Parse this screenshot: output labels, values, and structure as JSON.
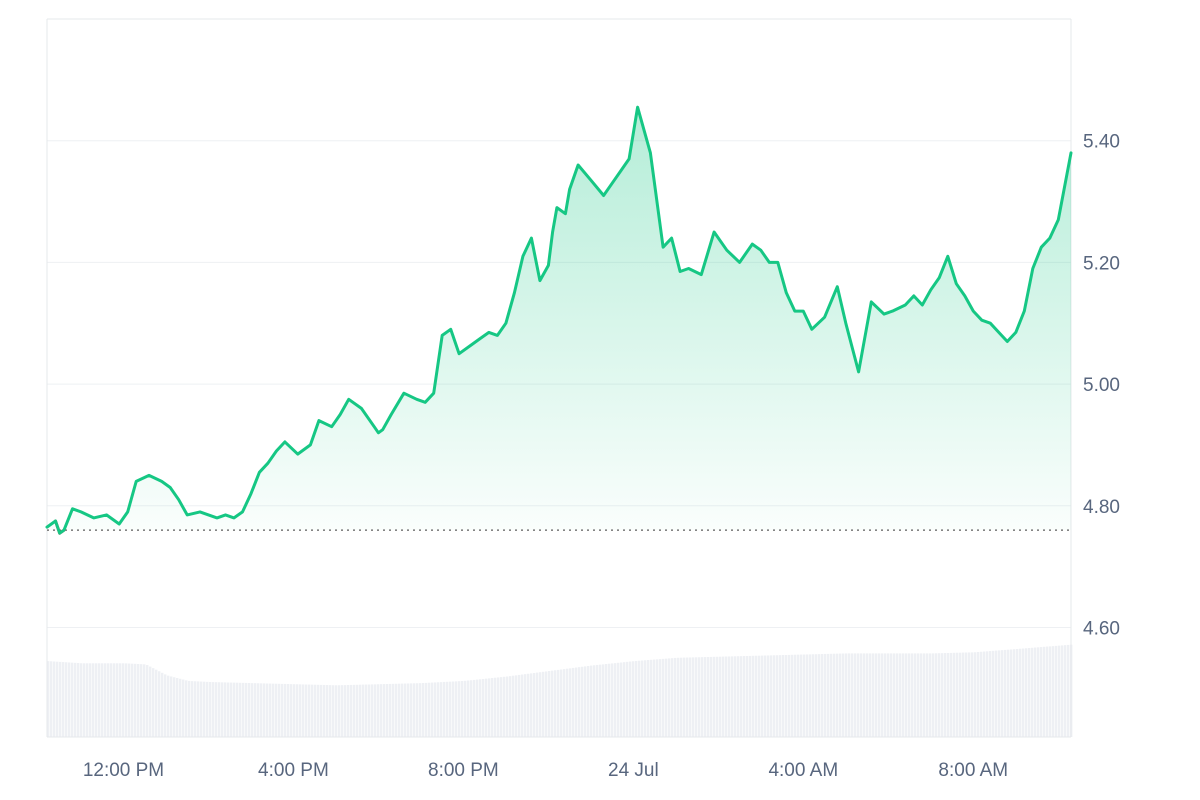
{
  "chart_data": {
    "type": "area",
    "title": "",
    "xlabel": "",
    "ylabel": "",
    "ylim": [
      4.42,
      5.6
    ],
    "y_ticks": [
      "5.40",
      "5.20",
      "5.00",
      "4.80",
      "4.60"
    ],
    "y_tick_values": [
      5.4,
      5.2,
      5.0,
      4.8,
      4.6
    ],
    "x_range_hours": [
      10.2,
      34.3
    ],
    "x_ticks": [
      {
        "label": "12:00 PM",
        "hour": 12
      },
      {
        "label": "4:00 PM",
        "hour": 16
      },
      {
        "label": "8:00 PM",
        "hour": 20
      },
      {
        "label": "24 Jul",
        "hour": 24
      },
      {
        "label": "4:00 AM",
        "hour": 28
      },
      {
        "label": "8:00 AM",
        "hour": 32
      }
    ],
    "open_price": 4.76,
    "grid": true,
    "legend": "none",
    "colors": {
      "up": "#16c784",
      "down": "#ea3943",
      "volume": "#eef0f4"
    },
    "price_series": {
      "name": "",
      "hours": [
        10.2,
        10.4,
        10.5,
        10.6,
        10.8,
        11.0,
        11.3,
        11.6,
        11.9,
        12.1,
        12.3,
        12.6,
        12.9,
        13.1,
        13.3,
        13.5,
        13.8,
        14.0,
        14.2,
        14.4,
        14.6,
        14.8,
        15.0,
        15.2,
        15.4,
        15.6,
        15.8,
        16.1,
        16.4,
        16.6,
        16.9,
        17.1,
        17.3,
        17.6,
        17.9,
        18.0,
        18.1,
        18.3,
        18.6,
        18.9,
        19.1,
        19.3,
        19.5,
        19.7,
        19.9,
        20.2,
        20.4,
        20.6,
        20.8,
        21.0,
        21.2,
        21.4,
        21.6,
        21.8,
        22.0,
        22.1,
        22.2,
        22.4,
        22.5,
        22.7,
        23.0,
        23.3,
        23.5,
        23.7,
        23.9,
        24.1,
        24.4,
        24.7,
        24.9,
        25.1,
        25.3,
        25.6,
        25.9,
        26.2,
        26.5,
        26.8,
        27.0,
        27.2,
        27.4,
        27.6,
        27.8,
        28.0,
        28.2,
        28.5,
        28.8,
        29.0,
        29.3,
        29.6,
        29.9,
        30.1,
        30.4,
        30.6,
        30.8,
        31.0,
        31.2,
        31.4,
        31.6,
        31.8,
        32.0,
        32.2,
        32.4,
        32.6,
        32.8,
        33.0,
        33.2,
        33.4,
        33.6,
        33.8,
        34.0,
        34.3
      ],
      "values": [
        4.765,
        4.775,
        4.755,
        4.76,
        4.795,
        4.79,
        4.78,
        4.785,
        4.77,
        4.79,
        4.84,
        4.85,
        4.84,
        4.83,
        4.81,
        4.785,
        4.79,
        4.785,
        4.78,
        4.785,
        4.78,
        4.79,
        4.82,
        4.855,
        4.87,
        4.89,
        4.905,
        4.885,
        4.9,
        4.94,
        4.93,
        4.95,
        4.975,
        4.96,
        4.93,
        4.92,
        4.925,
        4.95,
        4.985,
        4.975,
        4.97,
        4.985,
        5.08,
        5.09,
        5.05,
        5.065,
        5.075,
        5.085,
        5.08,
        5.1,
        5.15,
        5.21,
        5.24,
        5.17,
        5.195,
        5.25,
        5.29,
        5.28,
        5.32,
        5.36,
        5.335,
        5.31,
        5.33,
        5.35,
        5.37,
        5.455,
        5.38,
        5.225,
        5.24,
        5.185,
        5.19,
        5.18,
        5.25,
        5.22,
        5.2,
        5.23,
        5.22,
        5.2,
        5.2,
        5.15,
        5.12,
        5.12,
        5.09,
        5.11,
        5.16,
        5.1,
        5.02,
        5.135,
        5.115,
        5.12,
        5.13,
        5.145,
        5.13,
        5.155,
        5.175,
        5.21,
        5.165,
        5.145,
        5.12,
        5.105,
        5.1,
        5.085,
        5.07,
        5.085,
        5.12,
        5.19,
        5.225,
        5.24,
        5.27,
        5.38
      ]
    },
    "volume_series": {
      "name": "",
      "hours": [
        10.2,
        11.0,
        12.0,
        12.5,
        13.0,
        13.5,
        14.0,
        15.0,
        16.0,
        17.0,
        18.0,
        19.0,
        20.0,
        21.0,
        22.0,
        23.0,
        24.0,
        25.0,
        26.0,
        27.0,
        28.0,
        29.0,
        30.0,
        31.0,
        32.0,
        33.0,
        34.3
      ],
      "relative": [
        0.345,
        0.335,
        0.335,
        0.33,
        0.28,
        0.255,
        0.25,
        0.245,
        0.24,
        0.235,
        0.24,
        0.245,
        0.255,
        0.275,
        0.3,
        0.325,
        0.345,
        0.36,
        0.365,
        0.37,
        0.375,
        0.38,
        0.38,
        0.38,
        0.385,
        0.4,
        0.42
      ]
    }
  }
}
